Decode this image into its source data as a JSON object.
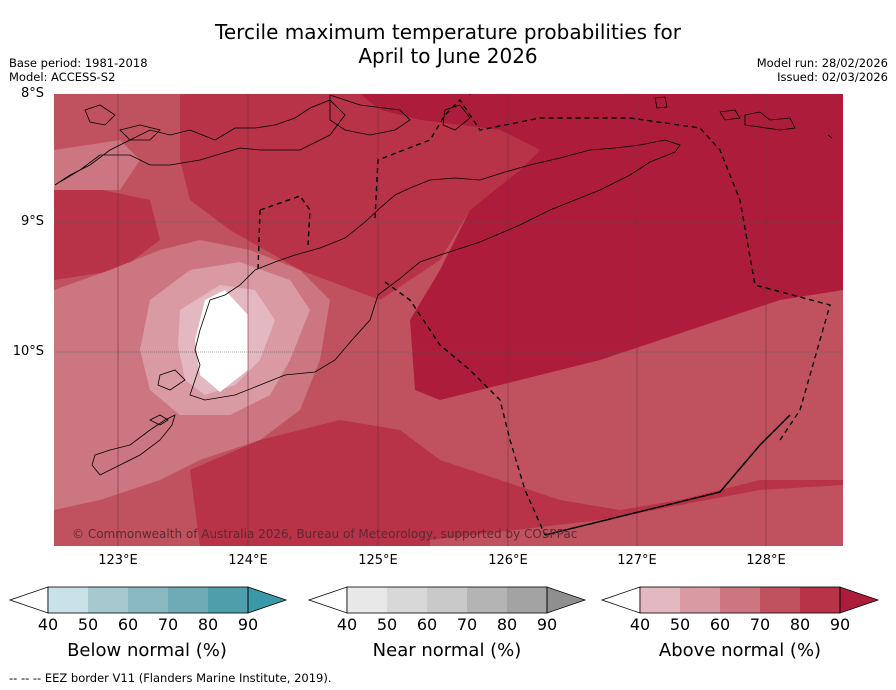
{
  "title_line1": "Tercile maximum temperature probabilities for",
  "title_line2": "April to June 2026",
  "base_period": "Base period: 1981-2018",
  "model": "Model: ACCESS-S2",
  "model_run": "Model run: 28/02/2026",
  "issued": "Issued: 02/03/2026",
  "copyright": "© Commonwealth of Australia 2026, Bureau of Meteorology, supported by COSPPac",
  "footer": "--  --  -- EEZ border V11 (Flanders Marine Institute, 2019).",
  "lat_labels": [
    "8°S",
    "9°S",
    "10°S"
  ],
  "lon_labels": [
    "123°E",
    "124°E",
    "125°E",
    "126°E",
    "127°E",
    "128°E"
  ],
  "colorbars": [
    {
      "label": "Below normal (%)",
      "ticks": [
        "40",
        "50",
        "60",
        "70",
        "80",
        "90"
      ],
      "colors": [
        "#c9e2e8",
        "#a6c9cf",
        "#8bb9c2",
        "#6eabb6",
        "#4e9fab",
        "#3b9aaa"
      ]
    },
    {
      "label": "Near normal (%)",
      "ticks": [
        "40",
        "50",
        "60",
        "70",
        "80",
        "90"
      ],
      "colors": [
        "#e8e8e8",
        "#d8d8d8",
        "#c9c9c9",
        "#b4b4b4",
        "#a3a3a3",
        "#8f8f8f"
      ]
    },
    {
      "label": "Above normal (%)",
      "ticks": [
        "40",
        "50",
        "60",
        "70",
        "80",
        "90"
      ],
      "colors": [
        "#e3b8c0",
        "#d99aa3",
        "#cb7680",
        "#c0525f",
        "#b83248",
        "#ae1c3b"
      ]
    }
  ]
}
